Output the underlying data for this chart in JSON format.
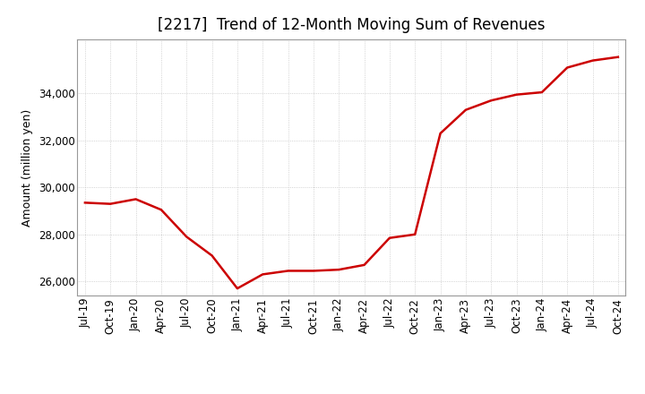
{
  "title": "[2217]  Trend of 12-Month Moving Sum of Revenues",
  "ylabel": "Amount (million yen)",
  "line_color": "#cc0000",
  "background_color": "#ffffff",
  "plot_bg_color": "#ffffff",
  "grid_color": "#b0b0b0",
  "x_labels": [
    "Jul-19",
    "Oct-19",
    "Jan-20",
    "Apr-20",
    "Jul-20",
    "Oct-20",
    "Jan-21",
    "Apr-21",
    "Jul-21",
    "Oct-21",
    "Jan-22",
    "Apr-22",
    "Jul-22",
    "Oct-22",
    "Jan-23",
    "Apr-23",
    "Jul-23",
    "Oct-23",
    "Jan-24",
    "Apr-24",
    "Jul-24",
    "Oct-24"
  ],
  "values": [
    29350,
    29300,
    29500,
    29050,
    27900,
    27100,
    25700,
    26300,
    26450,
    26450,
    26500,
    26700,
    27850,
    28000,
    32300,
    33300,
    33700,
    33950,
    34050,
    35100,
    35400,
    35550
  ],
  "ylim": [
    25400,
    36300
  ],
  "yticks": [
    26000,
    28000,
    30000,
    32000,
    34000
  ],
  "title_fontsize": 12,
  "label_fontsize": 9,
  "tick_fontsize": 8.5
}
